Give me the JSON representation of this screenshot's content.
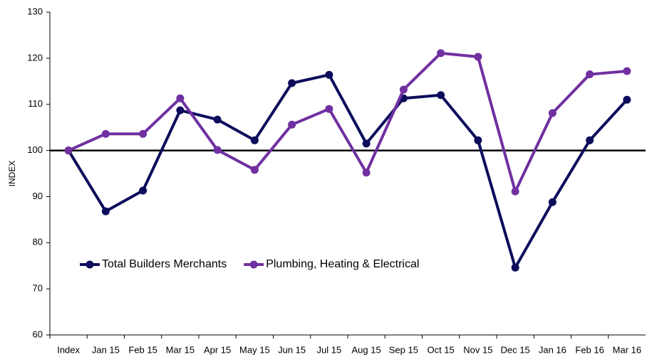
{
  "chart_data": {
    "type": "line",
    "y_label": "INDEX",
    "categories": [
      "Index",
      "Jan 15",
      "Feb 15",
      "Mar 15",
      "Apr 15",
      "May 15",
      "Jun 15",
      "Jul 15",
      "Aug 15",
      "Sep 15",
      "Oct 15",
      "Nov 15",
      "Dec 15",
      "Jan 16",
      "Feb 16",
      "Mar 16"
    ],
    "series": [
      {
        "name": "Total Builders Merchants",
        "color": "#0d0d5c",
        "values": [
          100,
          86.8,
          91.3,
          108.7,
          106.7,
          102.2,
          114.6,
          116.4,
          101.5,
          111.3,
          112,
          102.2,
          74.6,
          88.8,
          102.2,
          111
        ]
      },
      {
        "name": "Plumbing, Heating & Electrical",
        "color": "#7030a0",
        "values": [
          100,
          103.6,
          103.6,
          111.3,
          100.1,
          95.8,
          105.6,
          109,
          95.2,
          113.2,
          121.1,
          120.3,
          91.1,
          108.1,
          116.5,
          117.2
        ]
      }
    ],
    "ylim": [
      60,
      130
    ],
    "yticks": [
      60,
      70,
      80,
      90,
      100,
      110,
      120,
      130
    ],
    "reference_line": 100,
    "legend": "lower-left"
  }
}
